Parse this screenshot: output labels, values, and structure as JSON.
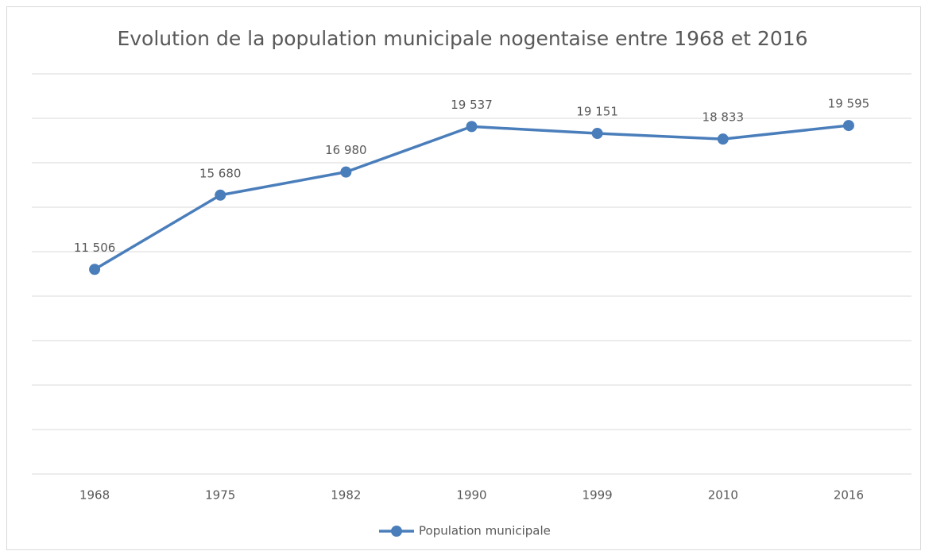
{
  "chart_data": {
    "type": "line",
    "title": "Evolution de la population municipale nogentaise entre 1968 et 2016",
    "categories": [
      "1968",
      "1975",
      "1982",
      "1990",
      "1999",
      "2010",
      "2016"
    ],
    "series": [
      {
        "name": "Population municipale",
        "color": "#4a7ebb",
        "values": [
          11506,
          15680,
          16980,
          19537,
          19151,
          18833,
          19595
        ],
        "value_labels": [
          "11 506",
          "15 680",
          "16 980",
          "19 537",
          "19 151",
          "18 833",
          "19 595"
        ]
      }
    ],
    "ylim": [
      0,
      22500
    ],
    "yticks": [
      0,
      2500,
      5000,
      7500,
      10000,
      12500,
      15000,
      17500,
      20000,
      22500
    ],
    "grid": true,
    "legend": "bottom"
  }
}
